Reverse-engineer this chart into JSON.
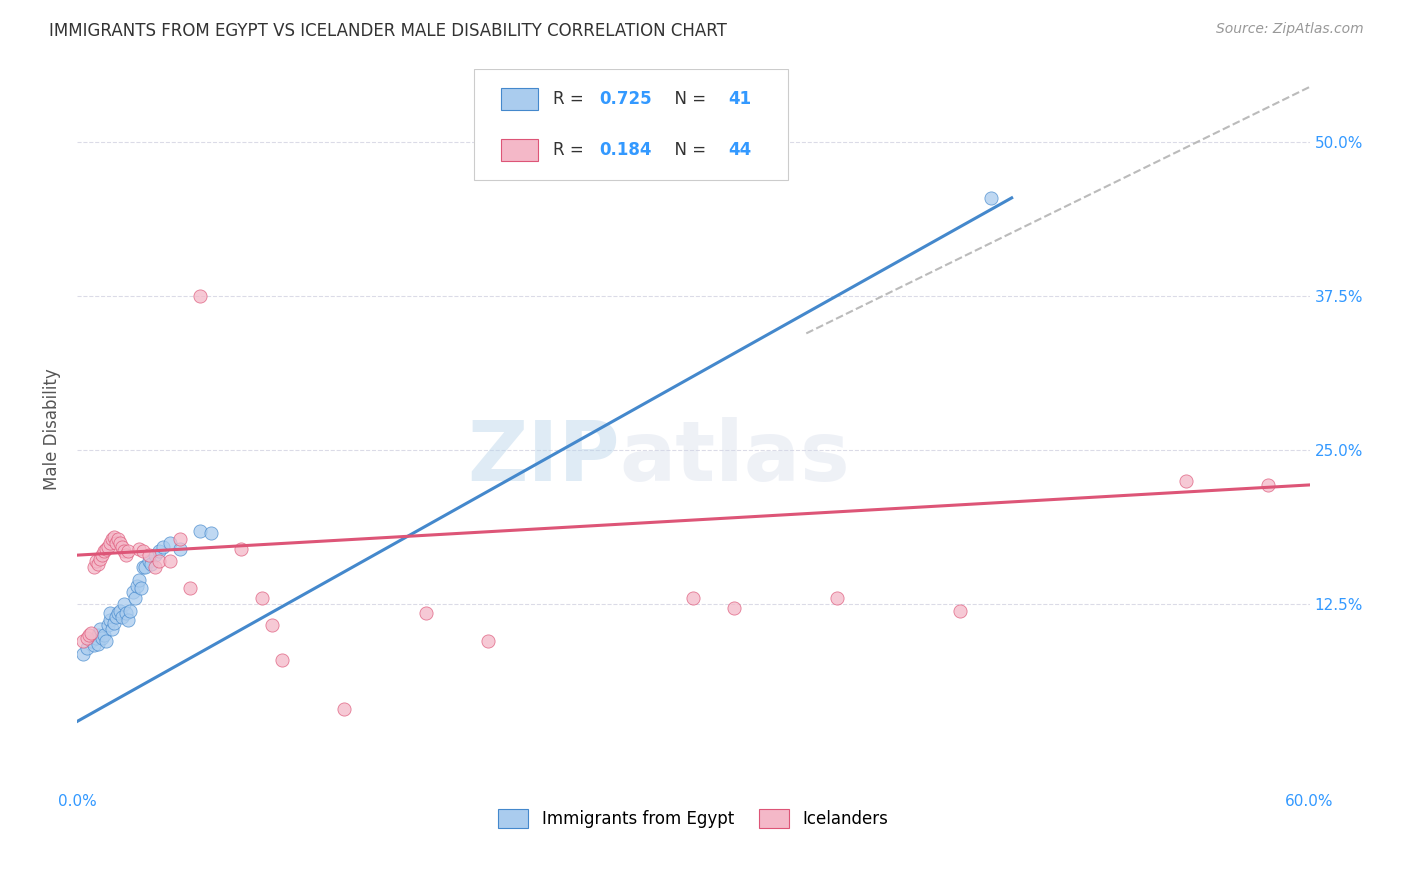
{
  "title": "IMMIGRANTS FROM EGYPT VS ICELANDER MALE DISABILITY CORRELATION CHART",
  "source": "Source: ZipAtlas.com",
  "ylabel": "Male Disability",
  "yticks": [
    "12.5%",
    "25.0%",
    "37.5%",
    "50.0%"
  ],
  "ytick_values": [
    0.125,
    0.25,
    0.375,
    0.5
  ],
  "xlim": [
    0.0,
    0.6
  ],
  "ylim": [
    -0.025,
    0.56
  ],
  "legend_blue_R": "0.725",
  "legend_blue_N": "41",
  "legend_pink_R": "0.184",
  "legend_pink_N": "44",
  "blue_color": "#aaccee",
  "pink_color": "#f4b8c8",
  "blue_line_color": "#4488cc",
  "pink_line_color": "#dd5577",
  "diagonal_color": "#bbbbbb",
  "watermark_zip": "ZIP",
  "watermark_atlas": "atlas",
  "blue_scatter": [
    [
      0.003,
      0.085
    ],
    [
      0.005,
      0.09
    ],
    [
      0.007,
      0.095
    ],
    [
      0.008,
      0.092
    ],
    [
      0.009,
      0.098
    ],
    [
      0.01,
      0.1
    ],
    [
      0.01,
      0.093
    ],
    [
      0.011,
      0.105
    ],
    [
      0.012,
      0.098
    ],
    [
      0.013,
      0.1
    ],
    [
      0.014,
      0.095
    ],
    [
      0.015,
      0.108
    ],
    [
      0.016,
      0.112
    ],
    [
      0.016,
      0.118
    ],
    [
      0.017,
      0.105
    ],
    [
      0.018,
      0.11
    ],
    [
      0.019,
      0.115
    ],
    [
      0.02,
      0.118
    ],
    [
      0.021,
      0.12
    ],
    [
      0.022,
      0.115
    ],
    [
      0.023,
      0.125
    ],
    [
      0.024,
      0.118
    ],
    [
      0.025,
      0.112
    ],
    [
      0.026,
      0.12
    ],
    [
      0.027,
      0.135
    ],
    [
      0.028,
      0.13
    ],
    [
      0.029,
      0.14
    ],
    [
      0.03,
      0.145
    ],
    [
      0.031,
      0.138
    ],
    [
      0.032,
      0.155
    ],
    [
      0.033,
      0.155
    ],
    [
      0.035,
      0.16
    ],
    [
      0.036,
      0.158
    ],
    [
      0.038,
      0.165
    ],
    [
      0.04,
      0.168
    ],
    [
      0.042,
      0.172
    ],
    [
      0.045,
      0.175
    ],
    [
      0.05,
      0.17
    ],
    [
      0.06,
      0.185
    ],
    [
      0.065,
      0.183
    ],
    [
      0.445,
      0.455
    ]
  ],
  "pink_scatter": [
    [
      0.003,
      0.095
    ],
    [
      0.005,
      0.098
    ],
    [
      0.006,
      0.1
    ],
    [
      0.007,
      0.102
    ],
    [
      0.008,
      0.155
    ],
    [
      0.009,
      0.16
    ],
    [
      0.01,
      0.158
    ],
    [
      0.011,
      0.162
    ],
    [
      0.012,
      0.165
    ],
    [
      0.013,
      0.168
    ],
    [
      0.014,
      0.17
    ],
    [
      0.015,
      0.172
    ],
    [
      0.016,
      0.175
    ],
    [
      0.017,
      0.178
    ],
    [
      0.018,
      0.18
    ],
    [
      0.019,
      0.175
    ],
    [
      0.02,
      0.178
    ],
    [
      0.021,
      0.175
    ],
    [
      0.022,
      0.172
    ],
    [
      0.023,
      0.168
    ],
    [
      0.024,
      0.165
    ],
    [
      0.025,
      0.168
    ],
    [
      0.03,
      0.17
    ],
    [
      0.032,
      0.168
    ],
    [
      0.035,
      0.165
    ],
    [
      0.038,
      0.155
    ],
    [
      0.04,
      0.16
    ],
    [
      0.045,
      0.16
    ],
    [
      0.05,
      0.178
    ],
    [
      0.055,
      0.138
    ],
    [
      0.06,
      0.375
    ],
    [
      0.08,
      0.17
    ],
    [
      0.09,
      0.13
    ],
    [
      0.095,
      0.108
    ],
    [
      0.1,
      0.08
    ],
    [
      0.13,
      0.04
    ],
    [
      0.17,
      0.118
    ],
    [
      0.2,
      0.095
    ],
    [
      0.3,
      0.13
    ],
    [
      0.32,
      0.122
    ],
    [
      0.37,
      0.13
    ],
    [
      0.43,
      0.12
    ],
    [
      0.54,
      0.225
    ],
    [
      0.58,
      0.222
    ]
  ],
  "blue_line": {
    "x0": 0.0,
    "y0": 0.03,
    "x1": 0.455,
    "y1": 0.455
  },
  "pink_line": {
    "x0": 0.0,
    "y0": 0.165,
    "x1": 0.6,
    "y1": 0.222
  },
  "diag_line": {
    "x0": 0.355,
    "y0": 0.345,
    "x1": 0.6,
    "y1": 0.545
  }
}
